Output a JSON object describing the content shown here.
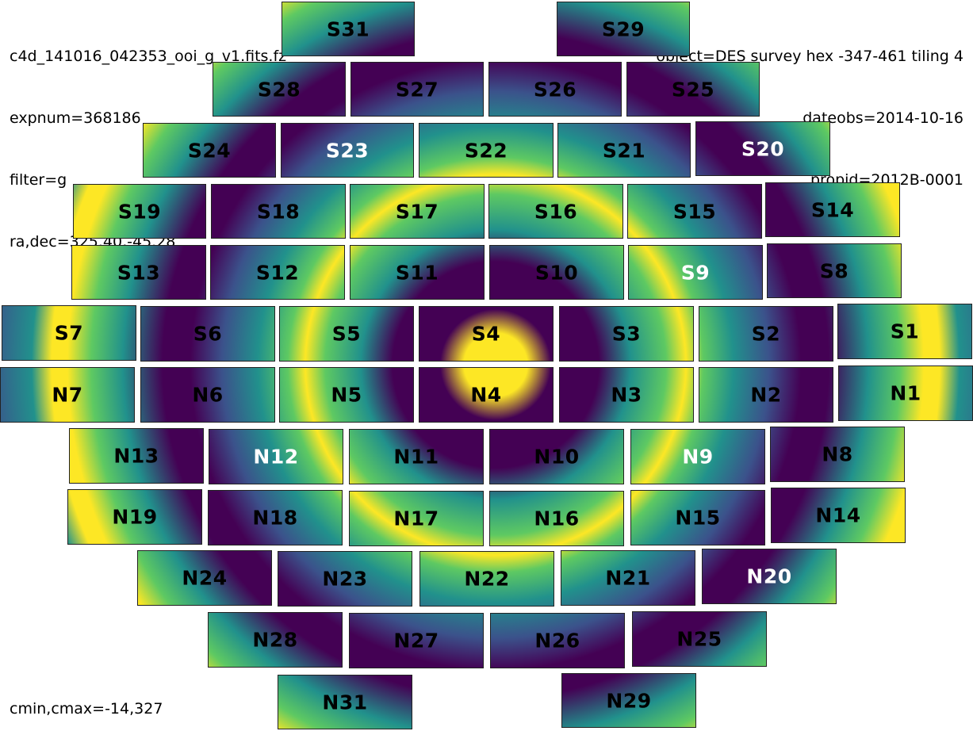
{
  "header": {
    "filename": "c4d_141016_042353_ooi_g_v1.fits.fz",
    "expnum": "expnum=368186",
    "filter": "filter=g",
    "radec": "ra,dec=325.40,-45.28",
    "object": "object=DES survey hex -347-461 tiling 4",
    "dateobs": "dateobs=2014-10-16",
    "propid": "propid=2012B-0001"
  },
  "footer": {
    "cminmax": "cmin,cmax=-14,327"
  },
  "colors": {
    "dark": "#440154",
    "blue": "#3b528b",
    "teal": "#21918c",
    "green": "#5ec962",
    "yellow": "#fde725"
  },
  "ccds": [
    {
      "label": "S31",
      "label_color": "black"
    },
    {
      "label": "S29",
      "label_color": "black"
    },
    {
      "label": "S28",
      "label_color": "black"
    },
    {
      "label": "S27",
      "label_color": "black"
    },
    {
      "label": "S26",
      "label_color": "black"
    },
    {
      "label": "S25",
      "label_color": "black"
    },
    {
      "label": "S24",
      "label_color": "black"
    },
    {
      "label": "S23",
      "label_color": "white"
    },
    {
      "label": "S22",
      "label_color": "black"
    },
    {
      "label": "S21",
      "label_color": "black"
    },
    {
      "label": "S20",
      "label_color": "white"
    },
    {
      "label": "S19",
      "label_color": "black"
    },
    {
      "label": "S18",
      "label_color": "black"
    },
    {
      "label": "S17",
      "label_color": "black"
    },
    {
      "label": "S16",
      "label_color": "black"
    },
    {
      "label": "S15",
      "label_color": "black"
    },
    {
      "label": "S14",
      "label_color": "black"
    },
    {
      "label": "S13",
      "label_color": "black"
    },
    {
      "label": "S12",
      "label_color": "black"
    },
    {
      "label": "S11",
      "label_color": "black"
    },
    {
      "label": "S10",
      "label_color": "black"
    },
    {
      "label": "S9",
      "label_color": "white"
    },
    {
      "label": "S8",
      "label_color": "black"
    },
    {
      "label": "S7",
      "label_color": "black"
    },
    {
      "label": "S6",
      "label_color": "black"
    },
    {
      "label": "S5",
      "label_color": "black"
    },
    {
      "label": "S4",
      "label_color": "black"
    },
    {
      "label": "S3",
      "label_color": "black"
    },
    {
      "label": "S2",
      "label_color": "black"
    },
    {
      "label": "S1",
      "label_color": "black"
    },
    {
      "label": "N7",
      "label_color": "black"
    },
    {
      "label": "N6",
      "label_color": "black"
    },
    {
      "label": "N5",
      "label_color": "black"
    },
    {
      "label": "N4",
      "label_color": "black"
    },
    {
      "label": "N3",
      "label_color": "black"
    },
    {
      "label": "N2",
      "label_color": "black"
    },
    {
      "label": "N1",
      "label_color": "black"
    },
    {
      "label": "N13",
      "label_color": "black"
    },
    {
      "label": "N12",
      "label_color": "white"
    },
    {
      "label": "N11",
      "label_color": "black"
    },
    {
      "label": "N10",
      "label_color": "black"
    },
    {
      "label": "N9",
      "label_color": "white"
    },
    {
      "label": "N8",
      "label_color": "black"
    },
    {
      "label": "N19",
      "label_color": "black"
    },
    {
      "label": "N18",
      "label_color": "black"
    },
    {
      "label": "N17",
      "label_color": "black"
    },
    {
      "label": "N16",
      "label_color": "black"
    },
    {
      "label": "N15",
      "label_color": "black"
    },
    {
      "label": "N14",
      "label_color": "black"
    },
    {
      "label": "N24",
      "label_color": "black"
    },
    {
      "label": "N23",
      "label_color": "black"
    },
    {
      "label": "N22",
      "label_color": "black"
    },
    {
      "label": "N21",
      "label_color": "black"
    },
    {
      "label": "N20",
      "label_color": "white"
    },
    {
      "label": "N28",
      "label_color": "black"
    },
    {
      "label": "N27",
      "label_color": "black"
    },
    {
      "label": "N26",
      "label_color": "black"
    },
    {
      "label": "N25",
      "label_color": "black"
    },
    {
      "label": "N31",
      "label_color": "black"
    },
    {
      "label": "N29",
      "label_color": "black"
    }
  ]
}
